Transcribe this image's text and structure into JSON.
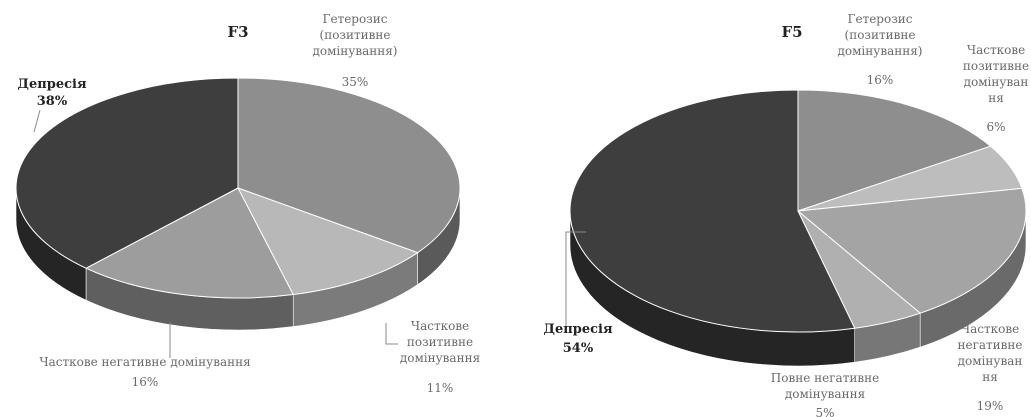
{
  "chart_data": [
    {
      "type": "pie",
      "title": "F3",
      "slices": [
        {
          "lines": [
            "Гетерозис",
            "(позитивне",
            "домінування)"
          ],
          "value": 35,
          "label": "35%",
          "color": "#8e8e8e",
          "side": "#5a5a5a"
        },
        {
          "lines": [
            "Часткове",
            "позитивне",
            "домінування"
          ],
          "value": 11,
          "label": "11%",
          "color": "#b8b8b8",
          "side": "#7b7b7b"
        },
        {
          "lines": [
            "Часткове негативне домінування"
          ],
          "value": 16,
          "label": "16%",
          "color": "#9d9d9d",
          "side": "#5f5f5f"
        },
        {
          "lines": [
            "Депресія"
          ],
          "value": 38,
          "label": "38%",
          "color": "#3e3e3e",
          "side": "#252525"
        }
      ]
    },
    {
      "type": "pie",
      "title": "F5",
      "slices": [
        {
          "lines": [
            "Гетерозис",
            "(позитивне",
            "домінування)"
          ],
          "value": 16,
          "label": "16%",
          "color": "#8e8e8e",
          "side": "#5a5a5a"
        },
        {
          "lines": [
            "Часткове",
            "позитивне",
            "домінуван",
            "ня"
          ],
          "value": 6,
          "label": "6%",
          "color": "#bdbdbd",
          "side": "#808080"
        },
        {
          "lines": [
            "Часткове",
            "негативне",
            "домінуван",
            "ня"
          ],
          "value": 19,
          "label": "19%",
          "color": "#a4a4a4",
          "side": "#6a6a6a"
        },
        {
          "lines": [
            "Повне негативне",
            "домінування"
          ],
          "value": 5,
          "label": "5%",
          "color": "#b0b0b0",
          "side": "#777777"
        },
        {
          "lines": [
            "Депресія"
          ],
          "value": 54,
          "label": "54%",
          "color": "#3e3e3e",
          "side": "#252525"
        }
      ]
    }
  ]
}
